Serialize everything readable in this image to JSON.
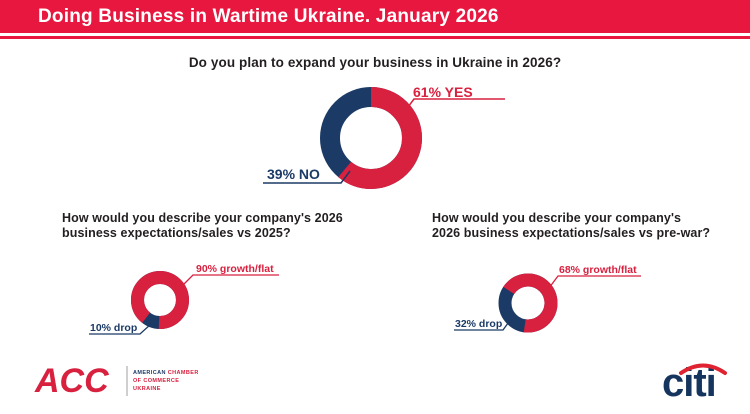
{
  "colors": {
    "header_red": "#E8173F",
    "chart_red": "#D8203F",
    "navy": "#1B3A66",
    "question_text": "#231F20",
    "acc_red": "#D8203F",
    "citi_navy": "#16355E",
    "citi_arc_red": "#E02330",
    "divider_gray": "#CFCFCF"
  },
  "header": {
    "title": "Doing Business in Wartime Ukraine. January 2026"
  },
  "chart_data": [
    {
      "type": "donut",
      "title": "Do you plan to expand your business in Ukraine in 2026?",
      "units": "percent",
      "legend_position": "callout-labels",
      "red_start_deg": 0,
      "slices": [
        {
          "label": "YES",
          "value": 61,
          "color": "#D8203F",
          "callout": "61% YES"
        },
        {
          "label": "NO",
          "value": 39,
          "color": "#1B3A66",
          "callout": "39% NO"
        }
      ]
    },
    {
      "type": "donut",
      "title": "How would you describe your company's 2026 business expectations/sales vs 2025?",
      "title_line1": "How would you describe your company's 2026",
      "title_line2": "business expectations/sales vs 2025?",
      "units": "percent",
      "legend_position": "callout-labels",
      "red_start_deg": 218,
      "slices": [
        {
          "label": "growth/flat",
          "value": 90,
          "color": "#D8203F",
          "callout": "90% growth/flat"
        },
        {
          "label": "drop",
          "value": 10,
          "color": "#1B3A66",
          "callout": "10% drop"
        }
      ]
    },
    {
      "type": "donut",
      "title": "How would you describe your company's 2026 business expectations/sales vs pre-war?",
      "title_line1": "How would you describe your company's",
      "title_line2": "2026 business expectations/sales vs pre-war?",
      "units": "percent",
      "legend_position": "callout-labels",
      "red_start_deg": 303,
      "slices": [
        {
          "label": "growth/flat",
          "value": 68,
          "color": "#D8203F",
          "callout": "68% growth/flat"
        },
        {
          "label": "drop",
          "value": 32,
          "color": "#1B3A66",
          "callout": "32% drop"
        }
      ]
    }
  ],
  "footer": {
    "acc_logo_text": "ACC",
    "acc_name_line1_part1": "AMERICAN",
    "acc_name_line1_part2": "CHAMBER",
    "acc_name_line2": "OF COMMERCE",
    "acc_name_line3": "UKRAINE",
    "citi_logo_text": "citi"
  }
}
